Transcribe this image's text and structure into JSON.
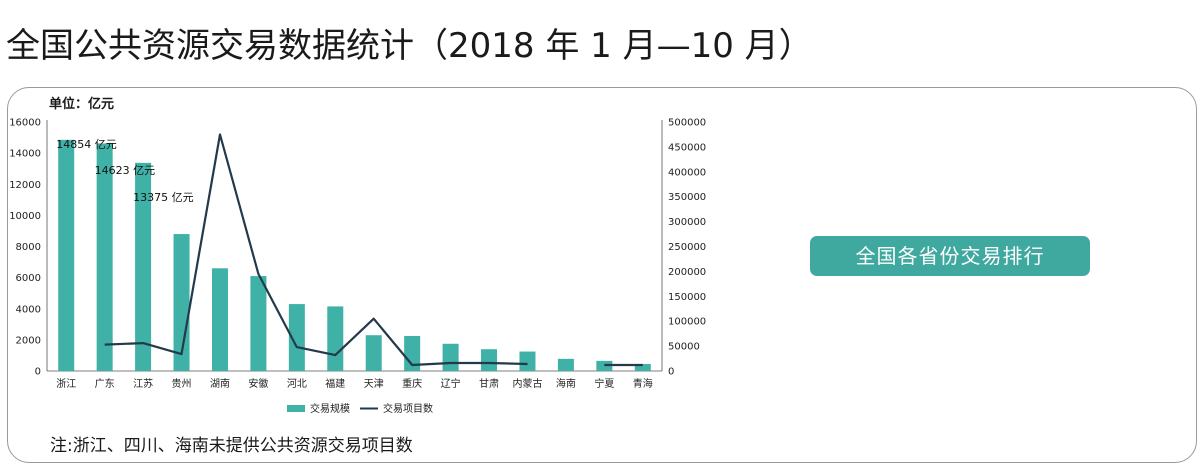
{
  "title": "全国公共资源交易数据统计（2018 年 1 月—10 月）",
  "unit_label": "单位：亿元",
  "badge_text": "全国各省份交易排行",
  "note": "注:浙江、四川、海南未提供公共资源交易项目数",
  "colors": {
    "bar": "#3fb1a6",
    "line": "#243a4a",
    "badge": "#3fa9a0"
  },
  "chart_data": {
    "type": "bar",
    "categories": [
      "浙江",
      "广东",
      "江苏",
      "贵州",
      "湖南",
      "安徽",
      "河北",
      "福建",
      "天津",
      "重庆",
      "辽宁",
      "甘肃",
      "内蒙古",
      "海南",
      "宁夏",
      "青海"
    ],
    "series": [
      {
        "name": "交易规模",
        "type": "bar",
        "axis": "left",
        "values": [
          14854,
          14623,
          13375,
          8800,
          6600,
          6100,
          4300,
          4150,
          2300,
          2250,
          1750,
          1400,
          1250,
          780,
          650,
          450
        ]
      },
      {
        "name": "交易项目数",
        "type": "line",
        "axis": "right",
        "values": [
          null,
          53000,
          56000,
          34000,
          475000,
          195000,
          48000,
          32000,
          105000,
          12000,
          16000,
          16000,
          14000,
          null,
          12000,
          12000
        ]
      }
    ],
    "data_labels": [
      {
        "index": 0,
        "text": "14854 亿元"
      },
      {
        "index": 1,
        "text": "14623 亿元"
      },
      {
        "index": 2,
        "text": "13375 亿元"
      }
    ],
    "y_left": {
      "min": 0,
      "max": 16000,
      "ticks": [
        "0",
        "2000",
        "4000",
        "6000",
        "8000",
        "10000",
        "12000",
        "14000",
        "16000"
      ]
    },
    "y_right": {
      "min": 0,
      "max": 500000,
      "ticks": [
        "0",
        "50000",
        "100000",
        "150000",
        "200000",
        "250000",
        "300000",
        "350000",
        "400000",
        "450000",
        "500000"
      ]
    },
    "legend_position": "bottom",
    "grid": false
  }
}
